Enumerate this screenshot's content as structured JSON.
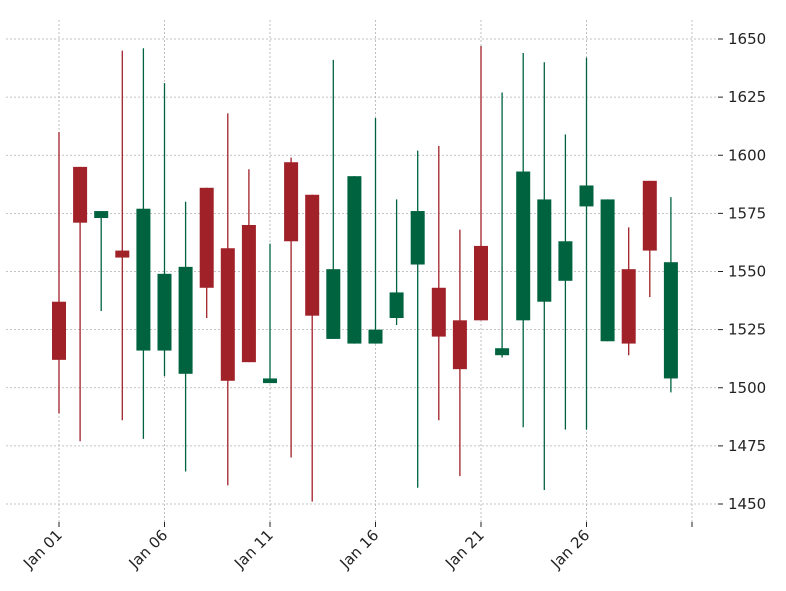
{
  "chart_data": {
    "type": "candlestick",
    "title": "",
    "xlabel": "",
    "ylabel": "",
    "ylim": [
      1440,
      1656
    ],
    "grid": true,
    "y_axis_position": "right",
    "up_color": "#006340",
    "down_color": "#A02128",
    "x_ticks": [
      "Jan 01",
      "Jan 06",
      "Jan 11",
      "Jan 16",
      "Jan 21",
      "Jan 26",
      ""
    ],
    "y_ticks": [
      1450,
      1475,
      1500,
      1525,
      1550,
      1575,
      1600,
      1625,
      1650
    ],
    "candles": [
      {
        "day": 1,
        "open": 1537,
        "high": 1610,
        "low": 1489,
        "close": 1512
      },
      {
        "day": 2,
        "open": 1595,
        "high": 1595,
        "low": 1477,
        "close": 1571
      },
      {
        "day": 3,
        "open": 1573,
        "high": 1576,
        "low": 1533,
        "close": 1576
      },
      {
        "day": 4,
        "open": 1559,
        "high": 1645,
        "low": 1486,
        "close": 1556
      },
      {
        "day": 5,
        "open": 1516,
        "high": 1646,
        "low": 1478,
        "close": 1577
      },
      {
        "day": 6,
        "open": 1516,
        "high": 1631,
        "low": 1505,
        "close": 1549
      },
      {
        "day": 7,
        "open": 1506,
        "high": 1580,
        "low": 1464,
        "close": 1552
      },
      {
        "day": 8,
        "open": 1586,
        "high": 1586,
        "low": 1530,
        "close": 1543
      },
      {
        "day": 9,
        "open": 1560,
        "high": 1618,
        "low": 1458,
        "close": 1503
      },
      {
        "day": 10,
        "open": 1570,
        "high": 1594,
        "low": 1511,
        "close": 1511
      },
      {
        "day": 11,
        "open": 1502,
        "high": 1562,
        "low": 1502,
        "close": 1504
      },
      {
        "day": 12,
        "open": 1597,
        "high": 1599,
        "low": 1470,
        "close": 1563
      },
      {
        "day": 13,
        "open": 1583,
        "high": 1583,
        "low": 1451,
        "close": 1531
      },
      {
        "day": 14,
        "open": 1521,
        "high": 1641,
        "low": 1521,
        "close": 1551
      },
      {
        "day": 15,
        "open": 1519,
        "high": 1591,
        "low": 1519,
        "close": 1591
      },
      {
        "day": 16,
        "open": 1519,
        "high": 1616,
        "low": 1519,
        "close": 1525
      },
      {
        "day": 17,
        "open": 1530,
        "high": 1581,
        "low": 1527,
        "close": 1541
      },
      {
        "day": 18,
        "open": 1553,
        "high": 1602,
        "low": 1457,
        "close": 1576
      },
      {
        "day": 19,
        "open": 1543,
        "high": 1604,
        "low": 1486,
        "close": 1522
      },
      {
        "day": 20,
        "open": 1529,
        "high": 1568,
        "low": 1462,
        "close": 1508
      },
      {
        "day": 21,
        "open": 1561,
        "high": 1647,
        "low": 1529,
        "close": 1529
      },
      {
        "day": 22,
        "open": 1514,
        "high": 1627,
        "low": 1513,
        "close": 1517
      },
      {
        "day": 23,
        "open": 1529,
        "high": 1644,
        "low": 1483,
        "close": 1593
      },
      {
        "day": 24,
        "open": 1537,
        "high": 1640,
        "low": 1456,
        "close": 1581
      },
      {
        "day": 25,
        "open": 1546,
        "high": 1609,
        "low": 1482,
        "close": 1563
      },
      {
        "day": 26,
        "open": 1578,
        "high": 1642,
        "low": 1482,
        "close": 1587
      },
      {
        "day": 27,
        "open": 1520,
        "high": 1581,
        "low": 1520,
        "close": 1581
      },
      {
        "day": 28,
        "open": 1551,
        "high": 1569,
        "low": 1514,
        "close": 1519
      },
      {
        "day": 29,
        "open": 1589,
        "high": 1589,
        "low": 1539,
        "close": 1559
      },
      {
        "day": 30,
        "open": 1504,
        "high": 1582,
        "low": 1498,
        "close": 1554
      }
    ]
  }
}
